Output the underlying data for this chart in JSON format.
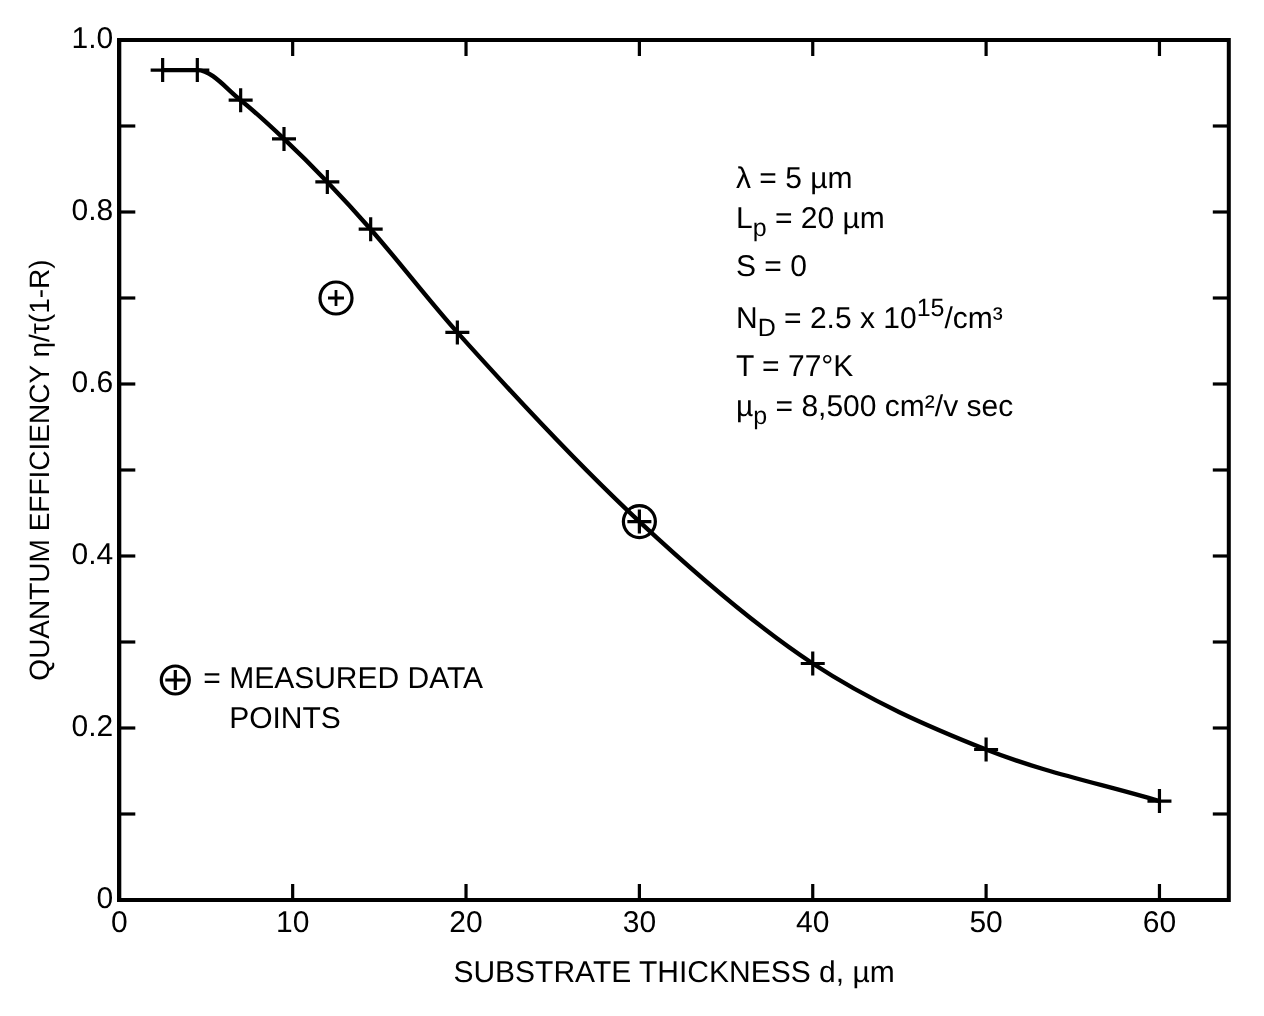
{
  "chart_data": {
    "type": "line",
    "xlabel": "SUBSTRATE THICKNESS d, µm",
    "ylabel": "QUANTUM EFFICIENCY η/τ(1-R)",
    "xlim": [
      0,
      64
    ],
    "xticks": [
      0,
      10,
      20,
      30,
      40,
      50,
      60
    ],
    "ylim": [
      0,
      1.0
    ],
    "yticks": [
      0,
      {
        "value": 0.1,
        "label": null
      },
      {
        "value": 0.2,
        "label": "0.2"
      },
      {
        "value": 0.3,
        "label": null
      },
      {
        "value": 0.4,
        "label": "0.4"
      },
      {
        "value": 0.5,
        "label": null
      },
      {
        "value": 0.6,
        "label": "0.6"
      },
      {
        "value": 0.7,
        "label": null
      },
      {
        "value": 0.8,
        "label": "0.8"
      },
      {
        "value": 0.9,
        "label": null
      },
      {
        "value": 1.0,
        "label": "1.0"
      }
    ],
    "grid": false,
    "legend": "bottom left",
    "annotations": [
      "λ = 5 µm",
      "L$_{p}$ = 20 µm",
      "S = 0",
      "N$_{D}$ = 2.5 x 10$^{15}$/cm³",
      "T = 77°K",
      "µ$_{p}$ = 8,500 cm²/v sec"
    ],
    "series": [
      {
        "color": "#000000",
        "marker": "cross",
        "line_style": "solid",
        "x": [
          2.5,
          4.5,
          7,
          9.5,
          12,
          14.5,
          19.5,
          30,
          40,
          50,
          60
        ],
        "values": [
          0.965,
          0.965,
          0.93,
          0.885,
          0.835,
          0.78,
          0.66,
          0.44,
          0.275,
          0.175,
          0.115
        ]
      },
      {
        "type": "scatter",
        "name": "= MEASURED DATA POINTS",
        "color": "#000000",
        "marker": "circle",
        "x": [
          12.5,
          30
        ],
        "values": [
          0.7,
          0.44
        ]
      }
    ]
  }
}
